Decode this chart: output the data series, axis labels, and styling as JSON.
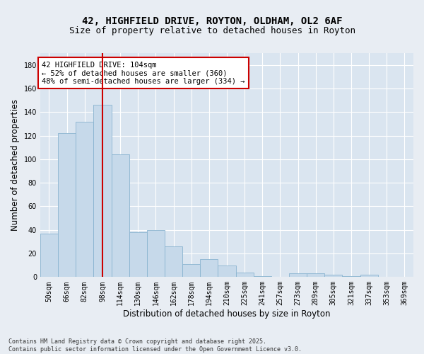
{
  "title_line1": "42, HIGHFIELD DRIVE, ROYTON, OLDHAM, OL2 6AF",
  "title_line2": "Size of property relative to detached houses in Royton",
  "xlabel": "Distribution of detached houses by size in Royton",
  "ylabel": "Number of detached properties",
  "categories": [
    "50sqm",
    "66sqm",
    "82sqm",
    "98sqm",
    "114sqm",
    "130sqm",
    "146sqm",
    "162sqm",
    "178sqm",
    "194sqm",
    "210sqm",
    "225sqm",
    "241sqm",
    "257sqm",
    "273sqm",
    "289sqm",
    "305sqm",
    "321sqm",
    "337sqm",
    "353sqm",
    "369sqm"
  ],
  "values": [
    37,
    122,
    132,
    146,
    104,
    38,
    40,
    26,
    11,
    15,
    10,
    4,
    1,
    0,
    3,
    3,
    2,
    1,
    2,
    0,
    0
  ],
  "bar_color": "#c6d9ea",
  "bar_edge_color": "#8ab4d0",
  "vline_x": 3.0,
  "vline_color": "#cc0000",
  "annotation_text": "42 HIGHFIELD DRIVE: 104sqm\n← 52% of detached houses are smaller (360)\n48% of semi-detached houses are larger (334) →",
  "annotation_box_color": "#ffffff",
  "annotation_box_edge": "#cc0000",
  "ylim": [
    0,
    190
  ],
  "yticks": [
    0,
    20,
    40,
    60,
    80,
    100,
    120,
    140,
    160,
    180
  ],
  "background_color": "#e8edf3",
  "plot_bg_color": "#dae5f0",
  "grid_color": "#ffffff",
  "footer": "Contains HM Land Registry data © Crown copyright and database right 2025.\nContains public sector information licensed under the Open Government Licence v3.0.",
  "title_fontsize": 10,
  "subtitle_fontsize": 9,
  "tick_fontsize": 7,
  "label_fontsize": 8.5,
  "annot_fontsize": 7.5,
  "footer_fontsize": 6
}
